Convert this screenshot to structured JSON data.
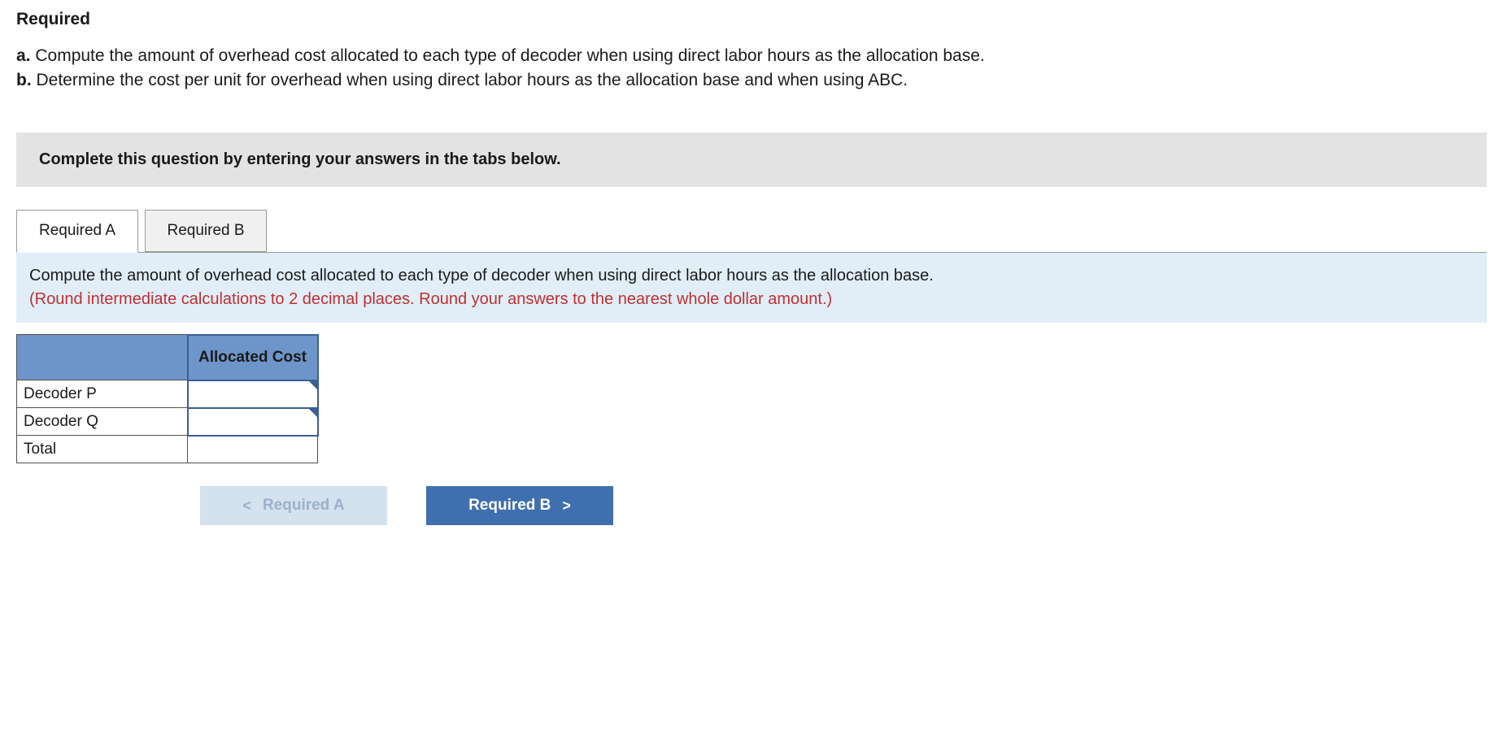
{
  "heading": "Required",
  "questions": {
    "a_prefix": "a.",
    "a_text": " Compute the amount of overhead cost allocated to each type of decoder when using direct labor hours as the allocation base.",
    "b_prefix": "b.",
    "b_text": " Determine the cost per unit for overhead when using direct labor hours as the allocation base and when using ABC."
  },
  "instruction": "Complete this question by entering your answers in the tabs below.",
  "tabs": {
    "a": "Required A",
    "b": "Required B"
  },
  "panel": {
    "line1": "Compute the amount of overhead cost allocated to each type of decoder when using direct labor hours as the allocation base.",
    "line2": "(Round intermediate calculations to 2 decimal places. Round your answers to the nearest whole dollar amount.)"
  },
  "table": {
    "header_col": "Allocated Cost",
    "rows": [
      "Decoder P",
      "Decoder Q",
      "Total"
    ],
    "colors": {
      "header_bg": "#6d95c9",
      "header_border": "#3a5f94",
      "cell_border": "#505050"
    }
  },
  "nav": {
    "prev_label": "Required A",
    "next_label": "Required B",
    "prev_chevron": "<",
    "next_chevron": ">"
  }
}
